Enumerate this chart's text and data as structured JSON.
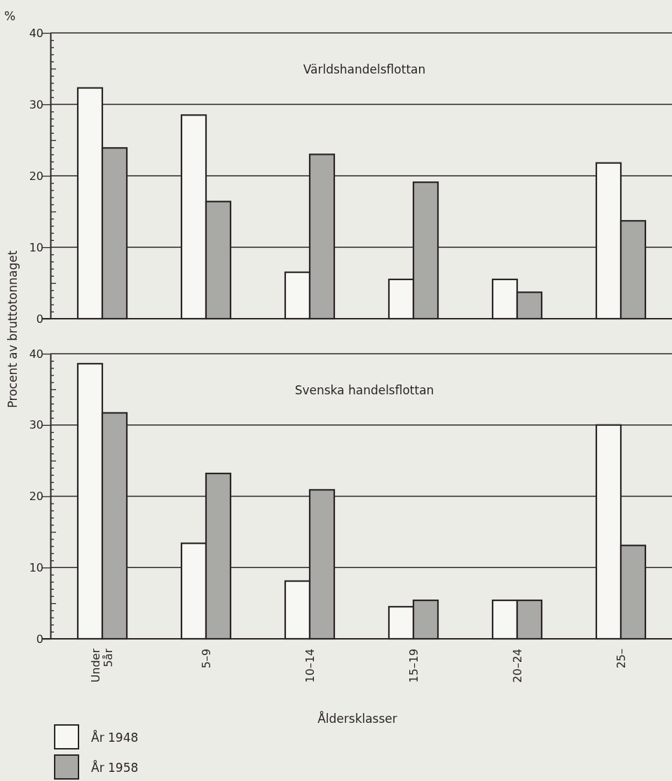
{
  "chart_data": [
    {
      "type": "bar",
      "title": "Världshandelsflottan",
      "ylabel": "Procent av bruttotonnaget",
      "annotations": [
        "%"
      ],
      "categories": [
        null,
        null,
        null,
        null,
        null,
        null
      ],
      "series": [
        {
          "color": "#f7f7f3",
          "values": [
            32.3,
            28.5,
            6.5,
            5.5,
            5.5,
            21.8
          ]
        },
        {
          "color": "#a9a9a5",
          "values": [
            23.9,
            16.4,
            23.0,
            19.1,
            3.7,
            13.7
          ]
        }
      ],
      "ylim": [
        0,
        40
      ],
      "yticks": [
        0,
        {
          "value": 1,
          "label": null
        },
        {
          "value": 2,
          "label": null
        },
        {
          "value": 3,
          "label": null
        },
        {
          "value": 4,
          "label": null
        },
        {
          "value": 5,
          "label": null
        },
        {
          "value": 6,
          "label": null
        },
        {
          "value": 7,
          "label": null
        },
        {
          "value": 8,
          "label": null
        },
        {
          "value": 9,
          "label": null
        },
        10,
        {
          "value": 11,
          "label": null
        },
        {
          "value": 12,
          "label": null
        },
        {
          "value": 13,
          "label": null
        },
        {
          "value": 14,
          "label": null
        },
        {
          "value": 15,
          "label": null
        },
        {
          "value": 16,
          "label": null
        },
        {
          "value": 17,
          "label": null
        },
        {
          "value": 18,
          "label": null
        },
        {
          "value": 19,
          "label": null
        },
        20,
        {
          "value": 21,
          "label": null
        },
        {
          "value": 22,
          "label": null
        },
        {
          "value": 23,
          "label": null
        },
        {
          "value": 24,
          "label": null
        },
        {
          "value": 25,
          "label": null
        },
        {
          "value": 26,
          "label": null
        },
        {
          "value": 27,
          "label": null
        },
        {
          "value": 28,
          "label": null
        },
        {
          "value": 29,
          "label": null
        },
        30,
        {
          "value": 31,
          "label": null
        },
        {
          "value": 32,
          "label": null
        },
        {
          "value": 33,
          "label": null
        },
        {
          "value": 34,
          "label": null
        },
        {
          "value": 35,
          "label": null
        },
        {
          "value": 36,
          "label": null
        },
        {
          "value": 37,
          "label": null
        },
        {
          "value": 38,
          "label": null
        },
        {
          "value": 39,
          "label": null
        },
        40
      ],
      "grid": "y",
      "tick_labels": "y"
    },
    {
      "type": "bar",
      "title": "Svenska handelsflottan",
      "xlabel": "Åldersklasser",
      "categories": [
        "Under 5år",
        "5–9",
        "10–14",
        "15–19",
        "20–24",
        "25–"
      ],
      "series": [
        {
          "name": "År 1948",
          "color": "#f7f7f3",
          "values": [
            38.6,
            13.4,
            8.1,
            4.5,
            5.4,
            30.0
          ]
        },
        {
          "name": "År 1958",
          "color": "#a9a9a5",
          "values": [
            31.7,
            23.2,
            20.9,
            5.4,
            5.4,
            13.1
          ]
        }
      ],
      "ylim": [
        0,
        40
      ],
      "yticks": [
        0,
        {
          "value": 1,
          "label": null
        },
        {
          "value": 2,
          "label": null
        },
        {
          "value": 3,
          "label": null
        },
        {
          "value": 4,
          "label": null
        },
        {
          "value": 5,
          "label": null
        },
        {
          "value": 6,
          "label": null
        },
        {
          "value": 7,
          "label": null
        },
        {
          "value": 8,
          "label": null
        },
        {
          "value": 9,
          "label": null
        },
        10,
        {
          "value": 11,
          "label": null
        },
        {
          "value": 12,
          "label": null
        },
        {
          "value": 13,
          "label": null
        },
        {
          "value": 14,
          "label": null
        },
        {
          "value": 15,
          "label": null
        },
        {
          "value": 16,
          "label": null
        },
        {
          "value": 17,
          "label": null
        },
        {
          "value": 18,
          "label": null
        },
        {
          "value": 19,
          "label": null
        },
        20,
        {
          "value": 21,
          "label": null
        },
        {
          "value": 22,
          "label": null
        },
        {
          "value": 23,
          "label": null
        },
        {
          "value": 24,
          "label": null
        },
        {
          "value": 25,
          "label": null
        },
        {
          "value": 26,
          "label": null
        },
        {
          "value": 27,
          "label": null
        },
        {
          "value": 28,
          "label": null
        },
        {
          "value": 29,
          "label": null
        },
        30,
        {
          "value": 31,
          "label": null
        },
        {
          "value": 32,
          "label": null
        },
        {
          "value": 33,
          "label": null
        },
        {
          "value": 34,
          "label": null
        },
        {
          "value": 35,
          "label": null
        },
        {
          "value": 36,
          "label": null
        },
        {
          "value": 37,
          "label": null
        },
        {
          "value": 38,
          "label": null
        },
        {
          "value": 39,
          "label": null
        },
        40
      ],
      "grid": "y",
      "legend": "bottom left"
    }
  ]
}
